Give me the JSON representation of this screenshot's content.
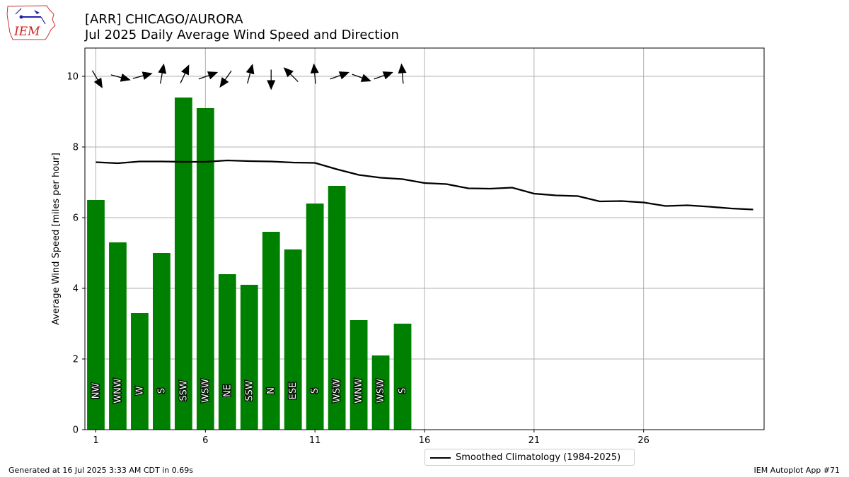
{
  "header": {
    "station": "[ARR] CHICAGO/AURORA",
    "subtitle": "Jul 2025 Daily Average Wind Speed and Direction"
  },
  "logo": {
    "text": "IEM",
    "icon": "iem-iowa-logo-icon",
    "color": "#cc2222"
  },
  "footer": {
    "generated": "Generated at 16 Jul 2025 3:33 AM CDT in 0.69s",
    "app": "IEM Autoplot App #71"
  },
  "legend": {
    "label": "Smoothed Climatology (1984-2025)"
  },
  "colors": {
    "bars": "#008000",
    "climatology": "#000000",
    "grid": "#b0b0b0",
    "arrows": "#000000"
  },
  "chart_data": {
    "type": "bar",
    "ylabel": "Average Wind Speed [miles per hour]",
    "xlim": [
      0.5,
      31.5
    ],
    "ylim": [
      0,
      10.8
    ],
    "xticks": [
      1,
      6,
      11,
      16,
      21,
      26
    ],
    "yticks": [
      0,
      2,
      4,
      6,
      8,
      10
    ],
    "grid": true,
    "legend_position": "bottom-center",
    "days": [
      1,
      2,
      3,
      4,
      5,
      6,
      7,
      8,
      9,
      10,
      11,
      12,
      13,
      14,
      15
    ],
    "values": [
      6.5,
      5.3,
      3.3,
      5.0,
      9.4,
      9.1,
      4.4,
      4.1,
      5.6,
      5.1,
      6.4,
      6.9,
      3.1,
      2.1,
      3.0
    ],
    "directions": [
      "NW",
      "WNW",
      "W",
      "S",
      "SSW",
      "WSW",
      "NE",
      "SSW",
      "N",
      "ESE",
      "S",
      "WSW",
      "WNW",
      "WSW",
      "S"
    ],
    "arrow_headings_deg": [
      150,
      105,
      75,
      10,
      25,
      70,
      215,
      15,
      180,
      315,
      355,
      70,
      110,
      70,
      355
    ],
    "climatology": {
      "name": "Smoothed Climatology (1984-2025)",
      "x": [
        1,
        2,
        3,
        4,
        5,
        6,
        7,
        8,
        9,
        10,
        11,
        12,
        13,
        14,
        15,
        16,
        17,
        18,
        19,
        20,
        21,
        22,
        23,
        24,
        25,
        26,
        27,
        28,
        29,
        30,
        31
      ],
      "y": [
        7.57,
        7.54,
        7.59,
        7.59,
        7.58,
        7.58,
        7.62,
        7.6,
        7.59,
        7.56,
        7.55,
        7.37,
        7.21,
        7.13,
        7.09,
        6.98,
        6.95,
        6.83,
        6.82,
        6.85,
        6.68,
        6.63,
        6.61,
        6.46,
        6.47,
        6.43,
        6.33,
        6.35,
        6.31,
        6.26,
        6.23
      ]
    }
  }
}
